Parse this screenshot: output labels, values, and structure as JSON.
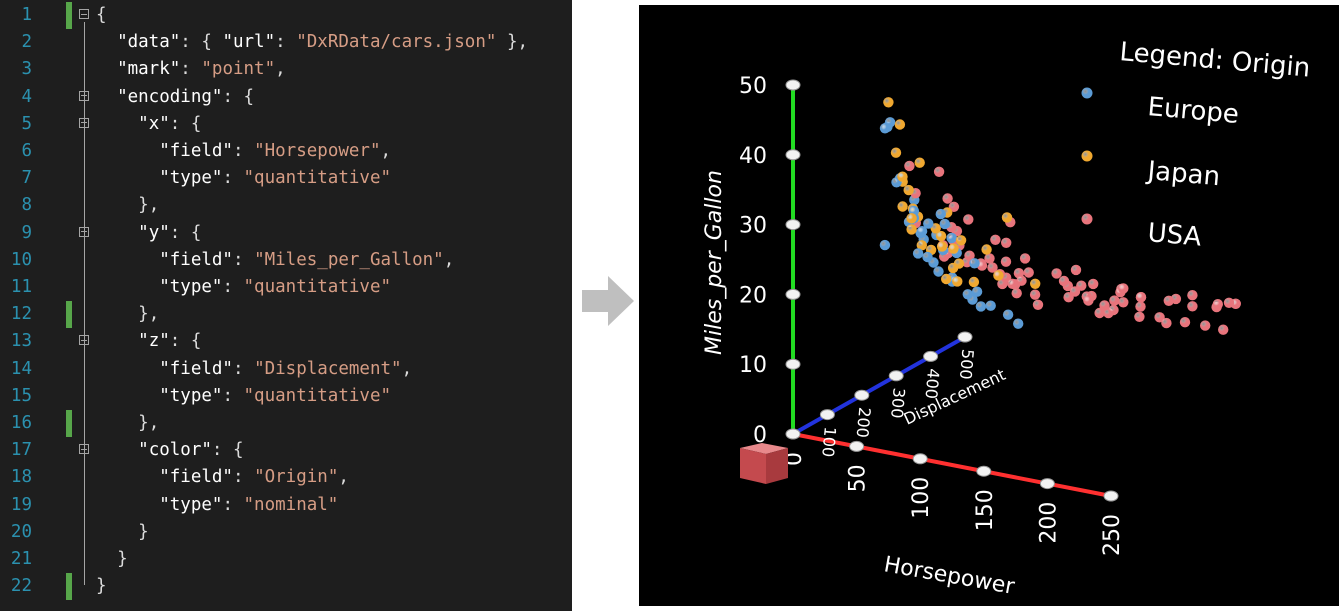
{
  "editor": {
    "lines": [
      {
        "n": "1",
        "bar": true,
        "fold": true,
        "indent": "",
        "parts": [
          [
            "p",
            "{"
          ]
        ]
      },
      {
        "n": "2",
        "bar": false,
        "fold": false,
        "indent": "  ",
        "parts": [
          [
            "k",
            "\"data\""
          ],
          [
            "p",
            ": { "
          ],
          [
            "k",
            "\"url\""
          ],
          [
            "p",
            ": "
          ],
          [
            "s",
            "\"DxRData/cars.json\""
          ],
          [
            "p",
            " },"
          ]
        ]
      },
      {
        "n": "3",
        "bar": false,
        "fold": false,
        "indent": "  ",
        "parts": [
          [
            "k",
            "\"mark\""
          ],
          [
            "p",
            ": "
          ],
          [
            "s",
            "\"point\""
          ],
          [
            "p",
            ","
          ]
        ]
      },
      {
        "n": "4",
        "bar": false,
        "fold": true,
        "indent": "  ",
        "parts": [
          [
            "k",
            "\"encoding\""
          ],
          [
            "p",
            ": {"
          ]
        ]
      },
      {
        "n": "5",
        "bar": false,
        "fold": true,
        "indent": "    ",
        "parts": [
          [
            "k",
            "\"x\""
          ],
          [
            "p",
            ": {"
          ]
        ]
      },
      {
        "n": "6",
        "bar": false,
        "fold": false,
        "indent": "      ",
        "parts": [
          [
            "k",
            "\"field\""
          ],
          [
            "p",
            ": "
          ],
          [
            "s",
            "\"Horsepower\""
          ],
          [
            "p",
            ","
          ]
        ]
      },
      {
        "n": "7",
        "bar": false,
        "fold": false,
        "indent": "      ",
        "parts": [
          [
            "k",
            "\"type\""
          ],
          [
            "p",
            ": "
          ],
          [
            "s",
            "\"quantitative\""
          ]
        ]
      },
      {
        "n": "8",
        "bar": false,
        "fold": false,
        "indent": "    ",
        "parts": [
          [
            "p",
            "},"
          ]
        ]
      },
      {
        "n": "9",
        "bar": false,
        "fold": true,
        "indent": "    ",
        "parts": [
          [
            "k",
            "\"y\""
          ],
          [
            "p",
            ": {"
          ]
        ]
      },
      {
        "n": "10",
        "bar": false,
        "fold": false,
        "indent": "      ",
        "parts": [
          [
            "k",
            "\"field\""
          ],
          [
            "p",
            ": "
          ],
          [
            "s",
            "\"Miles_per_Gallon\""
          ],
          [
            "p",
            ","
          ]
        ]
      },
      {
        "n": "11",
        "bar": false,
        "fold": false,
        "indent": "      ",
        "parts": [
          [
            "k",
            "\"type\""
          ],
          [
            "p",
            ": "
          ],
          [
            "s",
            "\"quantitative\""
          ]
        ]
      },
      {
        "n": "12",
        "bar": true,
        "fold": false,
        "indent": "    ",
        "parts": [
          [
            "p",
            "},"
          ]
        ]
      },
      {
        "n": "13",
        "bar": false,
        "fold": true,
        "indent": "    ",
        "parts": [
          [
            "k",
            "\"z\""
          ],
          [
            "p",
            ": {"
          ]
        ]
      },
      {
        "n": "14",
        "bar": false,
        "fold": false,
        "indent": "      ",
        "parts": [
          [
            "k",
            "\"field\""
          ],
          [
            "p",
            ": "
          ],
          [
            "s",
            "\"Displacement\""
          ],
          [
            "p",
            ","
          ]
        ]
      },
      {
        "n": "15",
        "bar": false,
        "fold": false,
        "indent": "      ",
        "parts": [
          [
            "k",
            "\"type\""
          ],
          [
            "p",
            ": "
          ],
          [
            "s",
            "\"quantitative\""
          ]
        ]
      },
      {
        "n": "16",
        "bar": true,
        "fold": false,
        "indent": "    ",
        "parts": [
          [
            "p",
            "},"
          ]
        ]
      },
      {
        "n": "17",
        "bar": false,
        "fold": true,
        "indent": "    ",
        "parts": [
          [
            "k",
            "\"color\""
          ],
          [
            "p",
            ": {"
          ]
        ]
      },
      {
        "n": "18",
        "bar": false,
        "fold": false,
        "indent": "      ",
        "parts": [
          [
            "k",
            "\"field\""
          ],
          [
            "p",
            ": "
          ],
          [
            "s",
            "\"Origin\""
          ],
          [
            "p",
            ","
          ]
        ]
      },
      {
        "n": "19",
        "bar": false,
        "fold": false,
        "indent": "      ",
        "parts": [
          [
            "k",
            "\"type\""
          ],
          [
            "p",
            ": "
          ],
          [
            "s",
            "\"nominal\""
          ]
        ]
      },
      {
        "n": "20",
        "bar": false,
        "fold": false,
        "indent": "    ",
        "parts": [
          [
            "p",
            "}"
          ]
        ]
      },
      {
        "n": "21",
        "bar": false,
        "fold": false,
        "indent": "  ",
        "parts": [
          [
            "p",
            "}"
          ]
        ]
      },
      {
        "n": "22",
        "bar": true,
        "fold": false,
        "indent": "",
        "parts": [
          [
            "p",
            "}"
          ]
        ]
      }
    ]
  },
  "arrow_icon": "right-arrow-icon",
  "chart_data": {
    "type": "scatter",
    "dimensions": 3,
    "x": {
      "label": "Horsepower",
      "ticks": [
        "0",
        "50",
        "100",
        "150",
        "200",
        "250"
      ],
      "range": [
        0,
        250
      ]
    },
    "y": {
      "label": "Miles_per_Gallon",
      "ticks": [
        "0",
        "10",
        "20",
        "30",
        "40",
        "50"
      ],
      "range": [
        0,
        50
      ]
    },
    "z": {
      "label": "Displacement",
      "ticks": [
        "100",
        "200",
        "300",
        "400",
        "500"
      ],
      "range": [
        0,
        500
      ]
    },
    "legend": {
      "title": "Legend: Origin",
      "placement": "top-right",
      "entries": [
        {
          "name": "Europe",
          "color": "#5b9bd5"
        },
        {
          "name": "Japan",
          "color": "#f0a830"
        },
        {
          "name": "USA",
          "color": "#e8747c"
        }
      ]
    },
    "series": [
      {
        "name": "Europe",
        "color": "#5b9bd5",
        "points": [
          [
            46,
            26,
            97
          ],
          [
            52,
            44,
            90
          ],
          [
            48,
            43,
            90
          ],
          [
            48,
            43,
            97
          ],
          [
            67,
            33,
            105
          ],
          [
            70,
            27,
            121
          ],
          [
            71,
            31,
            89
          ],
          [
            75,
            29,
            98
          ],
          [
            76,
            25,
            110
          ],
          [
            78,
            24,
            120
          ],
          [
            80,
            28,
            121
          ],
          [
            85,
            26,
            122
          ],
          [
            90,
            22,
            130
          ],
          [
            95,
            22,
            120
          ],
          [
            102,
            20,
            131
          ],
          [
            110,
            25,
            121
          ],
          [
            112,
            21,
            121
          ],
          [
            115,
            19,
            121
          ],
          [
            120,
            19,
            131
          ],
          [
            133,
            16,
            163
          ],
          [
            60,
            36,
            79
          ],
          [
            88,
            30,
            116
          ],
          [
            71,
            32,
            89
          ],
          [
            65,
            30,
            97
          ],
          [
            69,
            28,
            116
          ],
          [
            74,
            26,
            90
          ],
          [
            78,
            30,
            105
          ],
          [
            83,
            23,
            116
          ],
          [
            90,
            32,
            97
          ],
          [
            96,
            26,
            121
          ],
          [
            103,
            19,
            141
          ],
          [
            125,
            17,
            163
          ],
          [
            58,
            36,
            97
          ],
          [
            92,
            28,
            121
          ],
          [
            87,
            21,
            141
          ]
        ]
      },
      {
        "name": "Japan",
        "color": "#f0a830",
        "points": [
          [
            65,
            37,
            78
          ],
          [
            67,
            33,
            71
          ],
          [
            52,
            47,
            85
          ],
          [
            60,
            44,
            89
          ],
          [
            68,
            32,
            97
          ],
          [
            70,
            31,
            86
          ],
          [
            75,
            27,
            97
          ],
          [
            80,
            29,
            119
          ],
          [
            88,
            27,
            108
          ],
          [
            90,
            26,
            134
          ],
          [
            92,
            32,
            108
          ],
          [
            95,
            24,
            114
          ],
          [
            97,
            22,
            119
          ],
          [
            100,
            28,
            119
          ],
          [
            110,
            26,
            156
          ],
          [
            122,
            23,
            146
          ],
          [
            132,
            32,
            134
          ],
          [
            145,
            22,
            168
          ],
          [
            68,
            35,
            85
          ],
          [
            72,
            31,
            97
          ],
          [
            78,
            26,
            113
          ],
          [
            84,
            28,
            120
          ],
          [
            94,
            24,
            135
          ],
          [
            97,
            27,
            108
          ],
          [
            75,
            39,
            91
          ],
          [
            58,
            40,
            85
          ],
          [
            63,
            36,
            86
          ],
          [
            88,
            22,
            120
          ],
          [
            67,
            29,
            97
          ],
          [
            100,
            21,
            156
          ]
        ]
      },
      {
        "name": "USA",
        "color": "#e8747c",
        "points": [
          [
            130,
            18,
            307
          ],
          [
            165,
            15,
            350
          ],
          [
            150,
            18,
            318
          ],
          [
            150,
            16,
            304
          ],
          [
            140,
            17,
            302
          ],
          [
            198,
            15,
            429
          ],
          [
            220,
            14,
            454
          ],
          [
            215,
            14,
            440
          ],
          [
            225,
            14,
            455
          ],
          [
            190,
            15,
            390
          ],
          [
            170,
            15,
            383
          ],
          [
            160,
            14,
            340
          ],
          [
            150,
            15,
            400
          ],
          [
            225,
            14,
            455
          ],
          [
            95,
            22,
            198
          ],
          [
            97,
            18,
            250
          ],
          [
            85,
            21,
            232
          ],
          [
            88,
            27,
            140
          ],
          [
            90,
            26,
            151
          ],
          [
            100,
            19,
            250
          ],
          [
            105,
            18,
            258
          ],
          [
            110,
            19,
            231
          ],
          [
            115,
            18,
            225
          ],
          [
            120,
            17,
            260
          ],
          [
            125,
            16,
            250
          ],
          [
            135,
            16,
            302
          ],
          [
            145,
            16,
            318
          ],
          [
            153,
            13,
            351
          ],
          [
            158,
            15,
            350
          ],
          [
            165,
            13,
            400
          ],
          [
            175,
            13,
            360
          ],
          [
            180,
            12,
            400
          ],
          [
            190,
            12,
            383
          ],
          [
            200,
            12,
            400
          ],
          [
            208,
            11,
            429
          ],
          [
            210,
            13,
            455
          ],
          [
            230,
            12,
            400
          ],
          [
            78,
            24,
            151
          ],
          [
            84,
            25,
            140
          ],
          [
            90,
            23,
            173
          ],
          [
            100,
            20,
            232
          ],
          [
            110,
            20,
            250
          ],
          [
            70,
            30,
            98
          ],
          [
            80,
            26,
            140
          ],
          [
            88,
            28,
            151
          ],
          [
            92,
            24,
            173
          ],
          [
            96,
            21,
            225
          ],
          [
            105,
            22,
            231
          ],
          [
            115,
            20,
            260
          ],
          [
            125,
            19,
            304
          ],
          [
            130,
            17,
            318
          ],
          [
            140,
            15,
            350
          ],
          [
            150,
            14,
            351
          ],
          [
            155,
            14,
            318
          ],
          [
            160,
            16,
            360
          ],
          [
            170,
            15,
            383
          ],
          [
            185,
            14,
            429
          ],
          [
            195,
            13,
            440
          ],
          [
            140,
            20,
            305
          ],
          [
            97,
            30,
            151
          ],
          [
            85,
            33,
            135
          ],
          [
            65,
            38,
            98
          ],
          [
            68,
            34,
            105
          ],
          [
            90,
            32,
            135
          ],
          [
            105,
            26,
            200
          ],
          [
            120,
            23,
            231
          ],
          [
            74,
            36,
            151
          ],
          [
            88,
            29,
            135
          ],
          [
            110,
            28,
            225
          ],
          [
            100,
            24,
            250
          ],
          [
            92,
            22,
            231
          ],
          [
            112,
            19,
            250
          ],
          [
            145,
            18,
            302
          ],
          [
            165,
            17,
            350
          ]
        ]
      }
    ]
  }
}
